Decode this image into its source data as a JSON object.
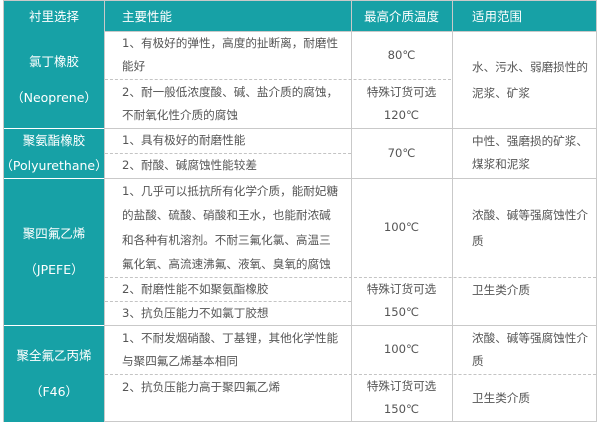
{
  "header": [
    "衬里选择",
    "主要性能",
    "最高介质温度",
    "适用范围"
  ],
  "groups": [
    {
      "lining": [
        "氯丁橡胶",
        "（Neoprene）"
      ],
      "props": [
        [
          "1、有极好的弹性，高度的扯断离，耐磨性",
          "能好"
        ],
        [
          "2、耐一般低浓度酸、碱、盐介质的腐蚀，",
          "不耐氧化性介质的腐蚀"
        ]
      ],
      "temps": [
        [
          "80℃"
        ],
        [
          "特殊订货可选",
          "120℃"
        ]
      ],
      "ranges": [
        [
          "水、污水、弱磨损性的",
          "泥浆、矿浆"
        ]
      ]
    },
    {
      "lining": [
        "聚氨酯橡胶",
        "（Polyurethane）"
      ],
      "props": [
        [
          "1、具有极好的耐磨性能"
        ],
        [
          "2、耐酸、碱腐蚀性能较差"
        ]
      ],
      "temps": [
        [
          "70℃"
        ]
      ],
      "ranges": [
        [
          "中性、强磨损的矿浆、",
          "煤浆和泥浆"
        ]
      ]
    },
    {
      "lining": [
        "聚四氟乙烯",
        "（JPEFE）"
      ],
      "props": [
        [
          "1、几乎可以抵抗所有化学介质，能耐妃糖",
          "的盐酸、硫酸、硝酸和王水，也能耐浓碱",
          "和各种有机溶剂。不耐三氟化氯、高温三",
          "氟化氧、高流速沸氟、液氧、臭氧的腐蚀"
        ],
        [
          "2、耐磨性能不如聚氨酯橡胶"
        ],
        [
          "3、抗负压能力不如氯丁胶想"
        ]
      ],
      "temps": [
        [
          "100℃"
        ],
        [
          "特殊订货可选",
          "150℃"
        ]
      ],
      "ranges": [
        [
          "浓酸、碱等强腐蚀性介",
          "质"
        ],
        [
          "卫生类介质"
        ]
      ]
    },
    {
      "lining": [
        "聚全氟乙丙烯",
        "（F46）"
      ],
      "props": [
        [
          "1、不耐发烟硝酸、丁基锂，其他化学性能",
          "与聚四氟乙烯基本相同"
        ],
        [
          "2、抗负压能力高于聚四氟乙烯"
        ]
      ],
      "temps": [
        [
          "100℃"
        ],
        [
          "特殊订货可选",
          "150℃"
        ]
      ],
      "ranges": [
        [
          "浓酸、碱等强腐蚀性介",
          "质"
        ],
        [
          "卫生类介质"
        ]
      ]
    }
  ],
  "colors": {
    "accent": "#17a1a6",
    "text": "#555555",
    "border": "#c9c9c9"
  }
}
